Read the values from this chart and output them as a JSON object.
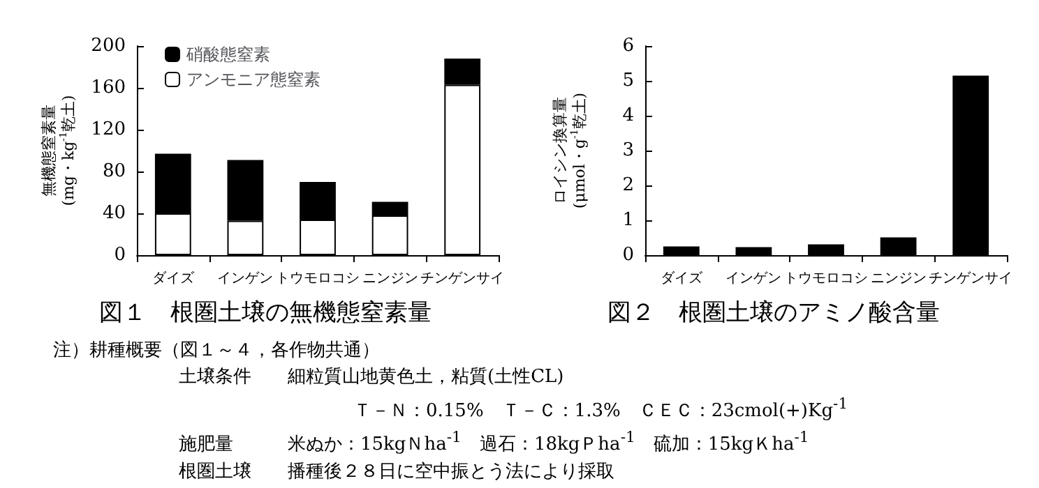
{
  "chart_data": [
    {
      "type": "bar",
      "title": "図１　根圏土壌の無機態窒素量",
      "ylabel": "無機態窒素量\n(mg・kg$^{-1}$乾土)",
      "categories": [
        "ダイズ",
        "インゲン",
        "トウモロコシ",
        "ニンジン",
        "チンゲンサイ"
      ],
      "stacked": true,
      "series": [
        {
          "name": "アンモニア態窒素",
          "color": "#ffffff",
          "values": [
            40,
            33,
            34,
            38,
            163
          ]
        },
        {
          "name": "硝酸態窒素",
          "color": "#000000",
          "values": [
            57,
            58,
            36,
            13,
            25
          ]
        }
      ],
      "ylim": [
        0,
        200
      ],
      "yticks": [
        0,
        40,
        80,
        120,
        160,
        200
      ],
      "grid": false,
      "legend": "top left",
      "annotations": [
        "注）耕種概要（図１～４，各作物共通）",
        "土壌条件　　細粒質山地黄色土，粘質(土性CL)",
        "Ｔ－Ｎ：0.15%　Ｔ－Ｃ：1.3%　ＣＥＣ：23cmol(+)Kg$^{-1}$",
        "施肥量　　　米ぬか：15kgＮha$^{-1}$　過石：18kgＰha$^{-1}$　硫加：15kgＫha$^{-1}$",
        "根圏土壌　　播種後２８日に空中振とう法により採取"
      ]
    },
    {
      "type": "bar",
      "title": "図２　根圏土壌のアミノ酸含量",
      "ylabel": "ロイシン換算量\n(μmol・g$^{-1}$乾土)",
      "categories": [
        "ダイズ",
        "インゲン",
        "トウモロコシ",
        "ニンジン",
        "チンゲンサイ"
      ],
      "color": "#000000",
      "values": [
        0.25,
        0.23,
        0.31,
        0.51,
        5.15
      ],
      "ylim": [
        0,
        6
      ],
      "yticks": [
        0,
        1,
        2,
        3,
        4,
        5,
        6
      ],
      "grid": false,
      "legend": false
    }
  ]
}
